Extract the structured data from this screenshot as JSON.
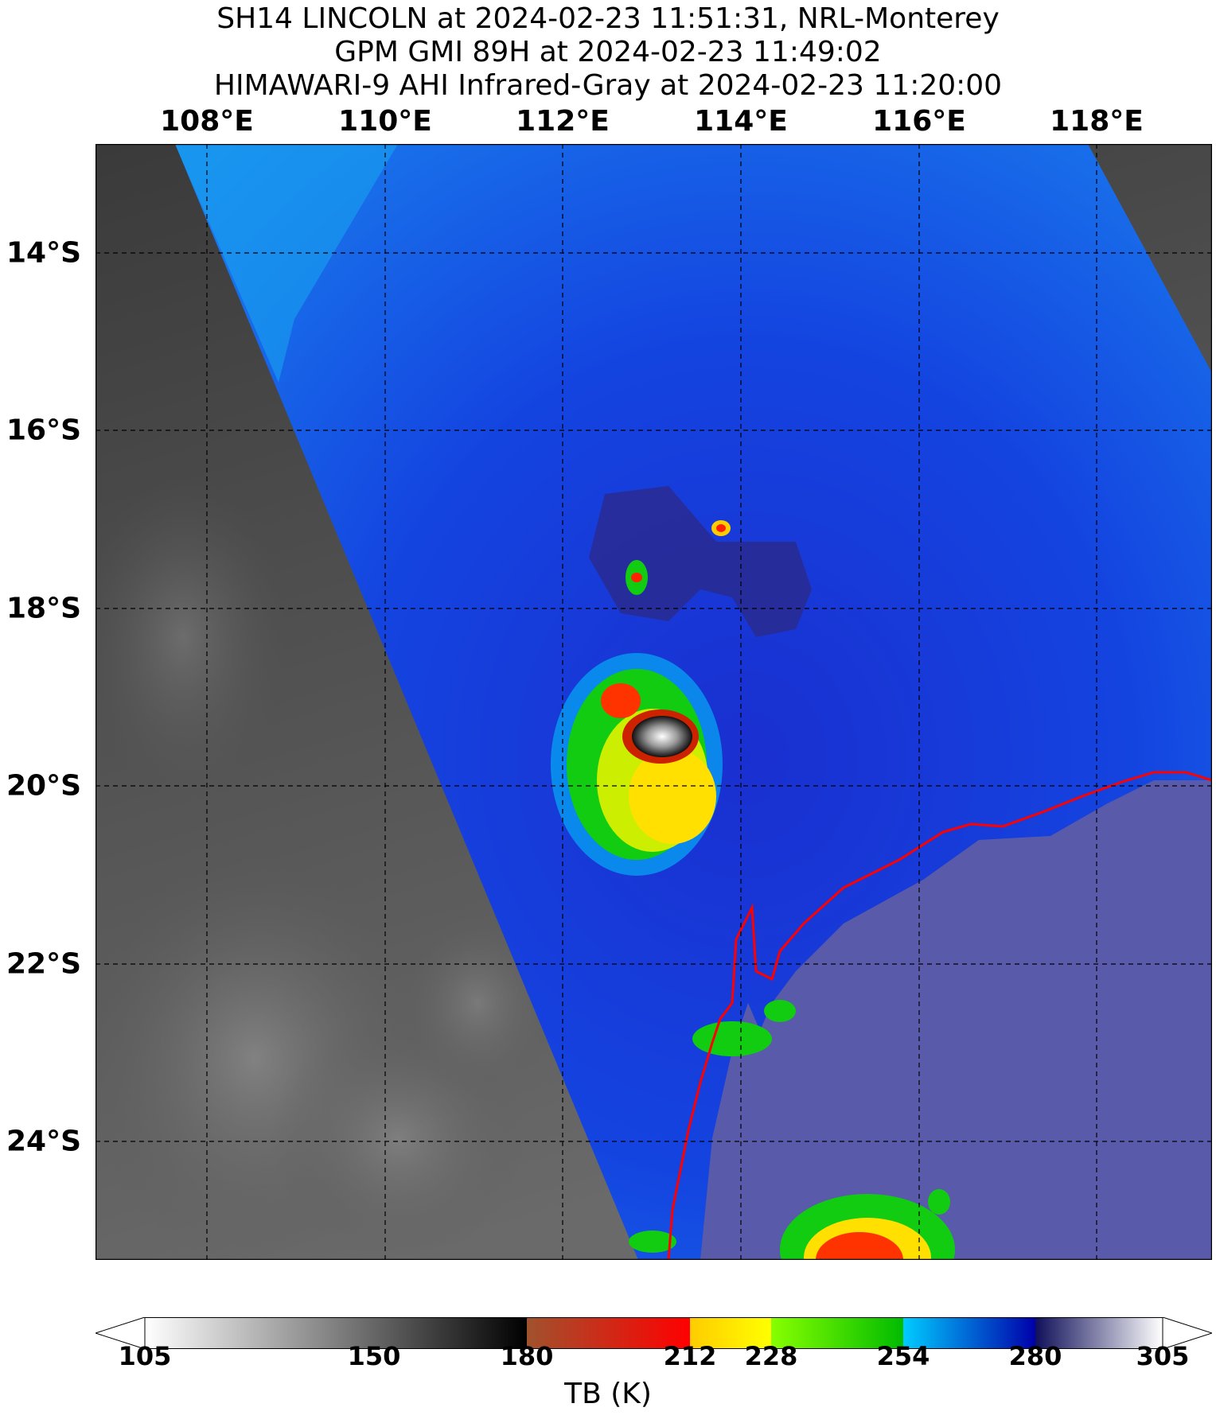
{
  "title": {
    "line1": "SH14 LINCOLN at 2024-02-23 11:51:31, NRL-Monterey",
    "line2": "GPM GMI 89H at 2024-02-23 11:49:02",
    "line3": "HIMAWARI-9 AHI Infrared-Gray at 2024-02-23 11:20:00"
  },
  "axes": {
    "lon_ticks": [
      "108°E",
      "110°E",
      "112°E",
      "114°E",
      "116°E",
      "118°E"
    ],
    "lat_ticks": [
      "14°S",
      "16°S",
      "18°S",
      "20°S",
      "22°S",
      "24°S"
    ],
    "gridlines": "dashed"
  },
  "colorbar": {
    "label": "TB (K)",
    "ticks": [
      "105",
      "150",
      "180",
      "212",
      "228",
      "254",
      "280",
      "305"
    ],
    "colors": {
      "white": "#ffffff",
      "black": "#000000",
      "brown": "#a0522d",
      "red": "#ff0000",
      "yellow": "#ffff00",
      "green": "#00cc00",
      "cyan": "#00ccff",
      "blue": "#0000aa",
      "navy": "#10105a"
    }
  },
  "map": {
    "coastline_color": "#ff0000",
    "storm_name": "LINCOLN"
  }
}
